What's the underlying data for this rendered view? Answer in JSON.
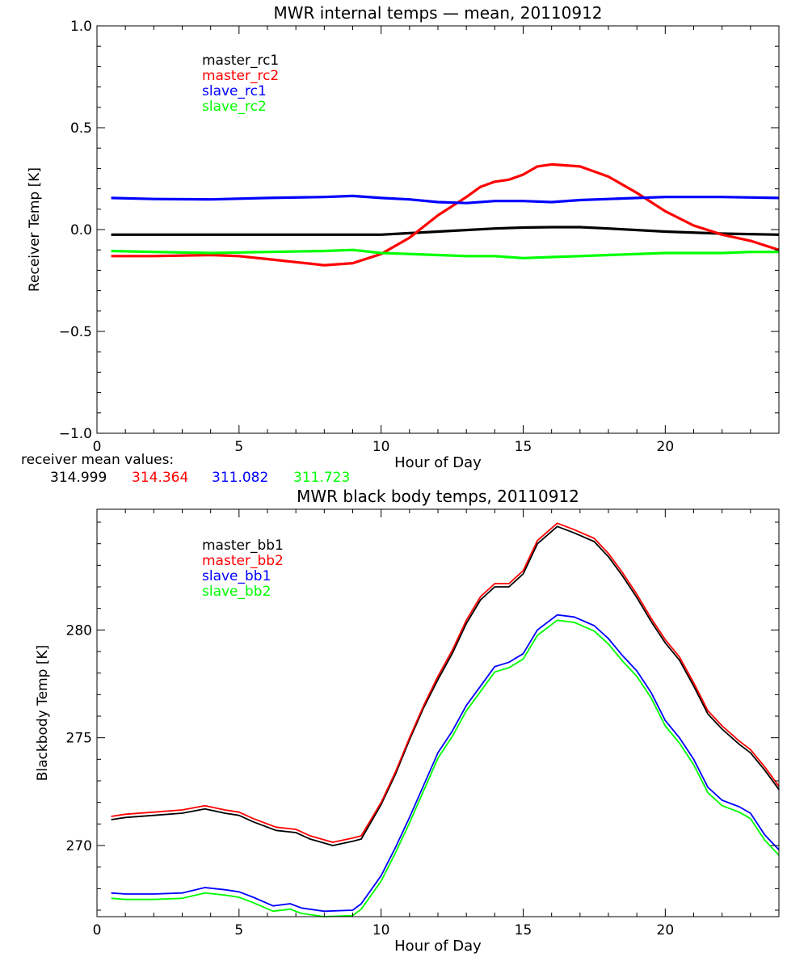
{
  "colors": {
    "black": "#000000",
    "red": "#ff0000",
    "blue": "#0000ff",
    "green": "#00ff00"
  },
  "mean_values_note": {
    "label": "receiver mean values:",
    "values": [
      {
        "text": "314.999",
        "color": "#000000"
      },
      {
        "text": "314.364",
        "color": "#ff0000"
      },
      {
        "text": "311.082",
        "color": "#0000ff"
      },
      {
        "text": "311.723",
        "color": "#00ff00"
      }
    ]
  },
  "chart_data": [
    {
      "type": "line",
      "title": "MWR internal temps — mean, 20110912",
      "xlabel": "Hour of Day",
      "ylabel": "Receiver Temp [K]",
      "xlim": [
        0,
        24
      ],
      "ylim": [
        -1.0,
        1.0
      ],
      "xticks": [
        0,
        5,
        10,
        15,
        20
      ],
      "xtick_labels": [
        "0",
        "5",
        "10",
        "15",
        "20"
      ],
      "yticks": [
        -1.0,
        -0.5,
        0.0,
        0.5,
        1.0
      ],
      "ytick_labels": [
        "−1.0",
        "−0.5",
        "0.0",
        "0.5",
        "1.0"
      ],
      "legend_position": "top-left",
      "grid": false,
      "series": [
        {
          "name": "master_rc1",
          "color": "#000000",
          "x": [
            0.5,
            2,
            4,
            6,
            8,
            10,
            12,
            14,
            15,
            16,
            17,
            18,
            20,
            22,
            24
          ],
          "y": [
            -0.025,
            -0.025,
            -0.025,
            -0.025,
            -0.025,
            -0.025,
            -0.01,
            0.005,
            0.01,
            0.012,
            0.012,
            0.005,
            -0.01,
            -0.02,
            -0.025
          ]
        },
        {
          "name": "master_rc2",
          "color": "#ff0000",
          "x": [
            0.5,
            2,
            4,
            5,
            6,
            7,
            8,
            9,
            10,
            11,
            12,
            13,
            13.5,
            14,
            14.5,
            15,
            15.5,
            16,
            17,
            18,
            19,
            20,
            21,
            22,
            23,
            24
          ],
          "y": [
            -0.13,
            -0.13,
            -0.125,
            -0.13,
            -0.145,
            -0.16,
            -0.175,
            -0.165,
            -0.12,
            -0.04,
            0.07,
            0.16,
            0.21,
            0.235,
            0.245,
            0.27,
            0.31,
            0.32,
            0.31,
            0.26,
            0.18,
            0.09,
            0.02,
            -0.025,
            -0.055,
            -0.1
          ]
        },
        {
          "name": "slave_rc1",
          "color": "#0000ff",
          "x": [
            0.5,
            2,
            4,
            6,
            8,
            9,
            10,
            11,
            12,
            13,
            14,
            15,
            16,
            17,
            18,
            19,
            20,
            22,
            24
          ],
          "y": [
            0.155,
            0.15,
            0.148,
            0.155,
            0.16,
            0.165,
            0.155,
            0.148,
            0.135,
            0.13,
            0.14,
            0.14,
            0.135,
            0.145,
            0.15,
            0.155,
            0.16,
            0.16,
            0.155
          ]
        },
        {
          "name": "slave_rc2",
          "color": "#00ff00",
          "x": [
            0.5,
            2,
            4,
            6,
            8,
            9,
            10,
            11,
            12,
            13,
            14,
            15,
            16,
            17,
            18,
            20,
            22,
            23,
            24
          ],
          "y": [
            -0.105,
            -0.11,
            -0.115,
            -0.11,
            -0.105,
            -0.1,
            -0.115,
            -0.12,
            -0.125,
            -0.13,
            -0.13,
            -0.14,
            -0.135,
            -0.13,
            -0.125,
            -0.115,
            -0.115,
            -0.11,
            -0.11
          ]
        }
      ]
    },
    {
      "type": "line",
      "title": "MWR black body temps, 20110912",
      "xlabel": "Hour of Day",
      "ylabel": "Blackbody Temp [K]",
      "xlim": [
        0,
        24
      ],
      "ylim": [
        266.7,
        285.6
      ],
      "xticks": [
        0,
        5,
        10,
        15,
        20
      ],
      "xtick_labels": [
        "0",
        "5",
        "10",
        "15",
        "20"
      ],
      "yticks": [
        270,
        275,
        280
      ],
      "ytick_labels": [
        "270",
        "275",
        "280"
      ],
      "legend_position": "top-left",
      "grid": false,
      "series": [
        {
          "name": "master_bb1",
          "color": "#000000",
          "x": [
            0.5,
            1,
            2,
            3,
            3.8,
            4.5,
            5,
            5.5,
            6.3,
            7,
            7.5,
            8.3,
            9,
            9.3,
            10,
            10.5,
            11,
            11.5,
            12,
            12.5,
            13,
            13.5,
            14,
            14.5,
            15,
            15.5,
            16.2,
            16.8,
            17.5,
            18,
            18.5,
            19,
            19.5,
            20,
            20.5,
            21,
            21.5,
            22,
            22.6,
            23,
            23.5,
            24
          ],
          "y": [
            271.2,
            271.3,
            271.4,
            271.5,
            271.7,
            271.5,
            271.4,
            271.1,
            270.7,
            270.6,
            270.3,
            270.0,
            270.2,
            270.3,
            271.9,
            273.3,
            274.9,
            276.4,
            277.7,
            278.9,
            280.3,
            281.4,
            282.0,
            282.0,
            282.6,
            284.0,
            284.8,
            284.5,
            284.1,
            283.4,
            282.5,
            281.5,
            280.4,
            279.4,
            278.6,
            277.4,
            276.1,
            275.4,
            274.7,
            274.3,
            273.5,
            272.6
          ]
        },
        {
          "name": "master_bb2",
          "color": "#ff0000",
          "x": [
            0.5,
            1,
            2,
            3,
            3.8,
            4.5,
            5,
            5.5,
            6.3,
            7,
            7.5,
            8.3,
            9,
            9.3,
            10,
            10.5,
            11,
            11.5,
            12,
            12.5,
            13,
            13.5,
            14,
            14.5,
            15,
            15.5,
            16.2,
            16.8,
            17.5,
            18,
            18.5,
            19,
            19.5,
            20,
            20.5,
            21,
            21.5,
            22,
            22.6,
            23,
            23.5,
            24
          ],
          "y": [
            271.35,
            271.45,
            271.55,
            271.65,
            271.85,
            271.65,
            271.55,
            271.25,
            270.85,
            270.75,
            270.45,
            270.15,
            270.35,
            270.45,
            272.0,
            273.4,
            275.0,
            276.5,
            277.85,
            279.05,
            280.45,
            281.55,
            282.15,
            282.15,
            282.75,
            284.15,
            284.95,
            284.65,
            284.25,
            283.55,
            282.65,
            281.65,
            280.55,
            279.55,
            278.75,
            277.55,
            276.25,
            275.55,
            274.85,
            274.45,
            273.65,
            272.75
          ]
        },
        {
          "name": "slave_bb1",
          "color": "#0000ff",
          "x": [
            0.5,
            1,
            2,
            3,
            3.8,
            4.5,
            5,
            5.5,
            6.2,
            6.8,
            7.2,
            8,
            9,
            9.3,
            10,
            10.5,
            11,
            11.5,
            12,
            12.5,
            13,
            13.5,
            14,
            14.5,
            15,
            15.5,
            16.2,
            16.8,
            17.5,
            18,
            18.5,
            19,
            19.5,
            20,
            20.5,
            21,
            21.5,
            22,
            22.6,
            23,
            23.5,
            24
          ],
          "y": [
            267.8,
            267.75,
            267.75,
            267.8,
            268.05,
            267.95,
            267.85,
            267.6,
            267.2,
            267.3,
            267.1,
            266.95,
            267.0,
            267.3,
            268.6,
            269.9,
            271.3,
            272.8,
            274.3,
            275.3,
            276.5,
            277.4,
            278.3,
            278.5,
            278.9,
            280.0,
            280.7,
            280.6,
            280.2,
            279.6,
            278.8,
            278.1,
            277.1,
            275.8,
            275.0,
            274.0,
            272.7,
            272.1,
            271.8,
            271.5,
            270.5,
            269.8
          ]
        },
        {
          "name": "slave_bb2",
          "color": "#00ff00",
          "x": [
            0.5,
            1,
            2,
            3,
            3.8,
            4.5,
            5,
            5.5,
            6.2,
            6.8,
            7.2,
            8,
            9,
            9.3,
            10,
            10.5,
            11,
            11.5,
            12,
            12.5,
            13,
            13.5,
            14,
            14.5,
            15,
            15.5,
            16.2,
            16.8,
            17.5,
            18,
            18.5,
            19,
            19.5,
            20,
            20.5,
            21,
            21.5,
            22,
            22.6,
            23,
            23.5,
            24
          ],
          "y": [
            267.55,
            267.5,
            267.5,
            267.55,
            267.8,
            267.7,
            267.6,
            267.35,
            266.95,
            267.05,
            266.85,
            266.7,
            266.75,
            267.05,
            268.35,
            269.65,
            271.05,
            272.55,
            274.05,
            275.05,
            276.25,
            277.15,
            278.05,
            278.25,
            278.65,
            279.75,
            280.45,
            280.35,
            279.95,
            279.35,
            278.55,
            277.85,
            276.85,
            275.55,
            274.75,
            273.75,
            272.45,
            271.85,
            271.55,
            271.25,
            270.25,
            269.55
          ]
        }
      ]
    }
  ]
}
